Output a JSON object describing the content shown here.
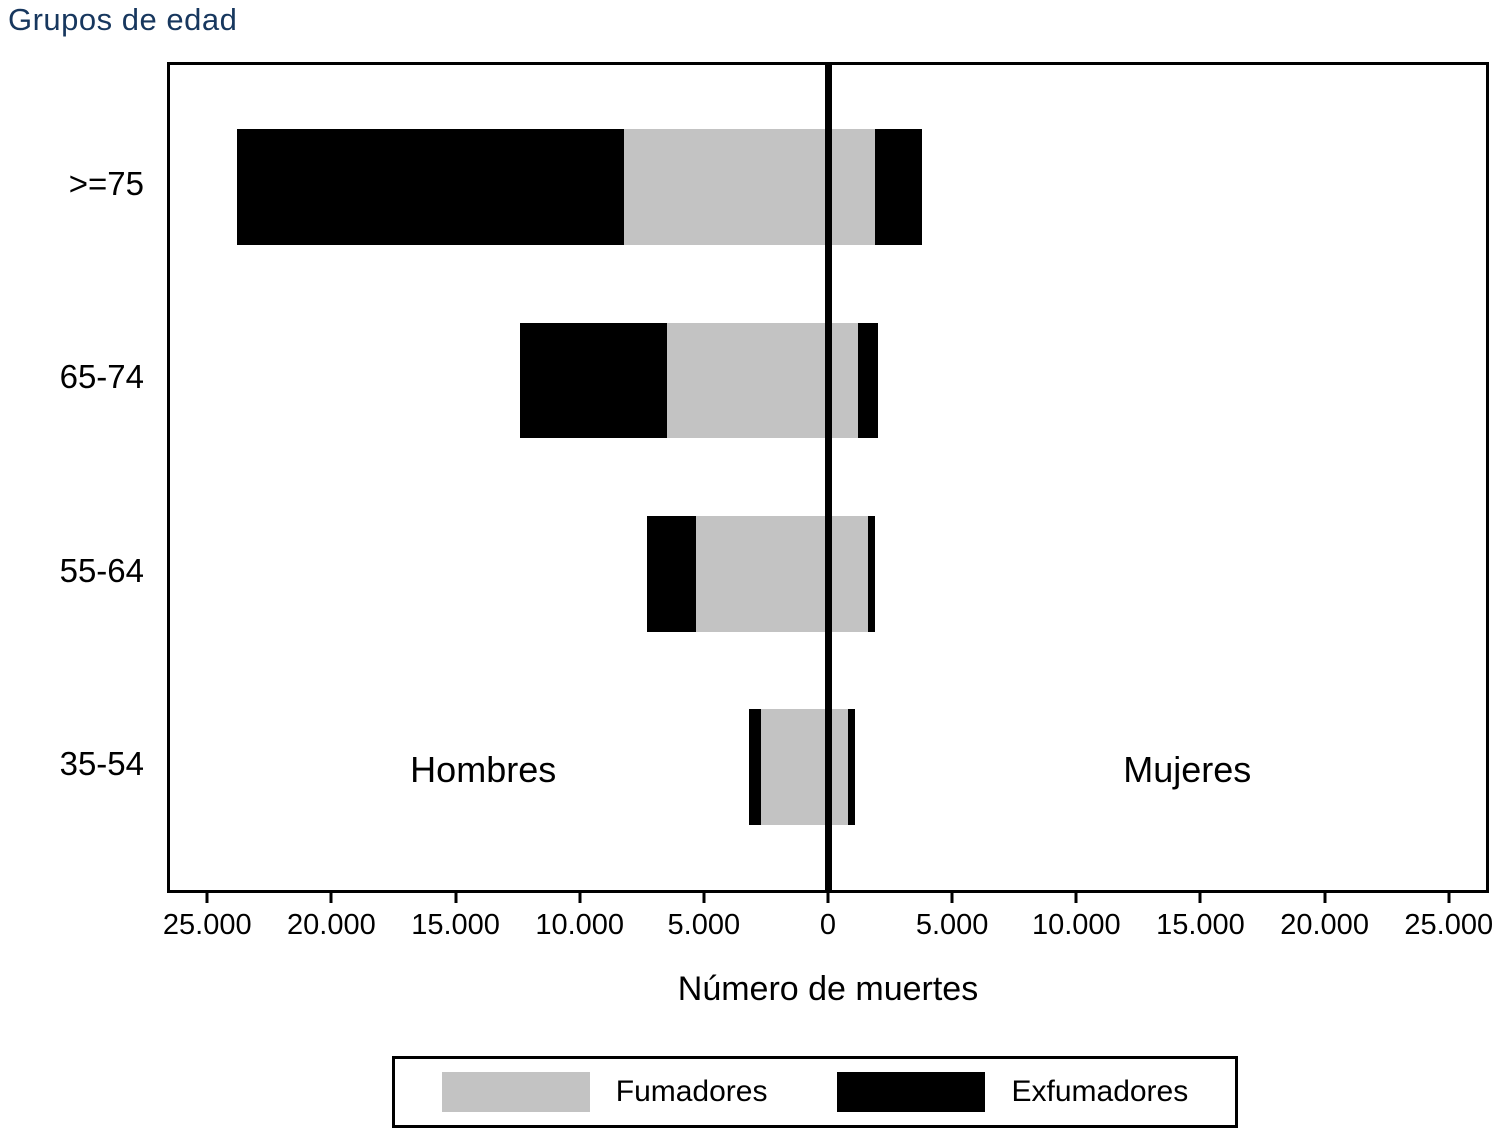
{
  "title": "Grupos de edad",
  "colors": {
    "title": "#17375e",
    "smokers_gray": "#c3c3c3",
    "exsmokers_black": "#000000"
  },
  "chart_data": {
    "type": "bar",
    "orientation": "horizontal-diverging",
    "title": "Grupos de edad",
    "xlabel": "Número de muertes",
    "ylabel": "Grupos de edad",
    "categories": [
      ">=75",
      "65-74",
      "55-64",
      "35-54"
    ],
    "series": [
      {
        "name": "Hombres Fumadores",
        "side": "left",
        "color": "#c3c3c3",
        "values": [
          8200,
          6500,
          5300,
          2700
        ]
      },
      {
        "name": "Hombres Exfumadores",
        "side": "left",
        "color": "#000000",
        "values": [
          15600,
          5900,
          2000,
          500
        ]
      },
      {
        "name": "Mujeres Fumadores",
        "side": "right",
        "color": "#c3c3c3",
        "values": [
          1900,
          1200,
          1600,
          800
        ]
      },
      {
        "name": "Mujeres Exfumadores",
        "side": "right",
        "color": "#000000",
        "values": [
          1900,
          800,
          300,
          300
        ]
      }
    ],
    "x_ticks": [
      25000,
      20000,
      15000,
      10000,
      5000,
      0,
      5000,
      10000,
      15000,
      20000,
      25000
    ],
    "x_tick_labels": [
      "25.000",
      "20.000",
      "15.000",
      "10.000",
      "5.000",
      "0",
      "5.000",
      "10.000",
      "15.000",
      "20.000",
      "25.000"
    ],
    "x_axis_max": 26500,
    "side_labels": {
      "left": "Hombres",
      "right": "Mujeres"
    },
    "legend": [
      {
        "label": "Fumadores",
        "color": "#c3c3c3"
      },
      {
        "label": "Exfumadores",
        "color": "#000000"
      }
    ],
    "grid": false,
    "legend_position": "bottom"
  }
}
